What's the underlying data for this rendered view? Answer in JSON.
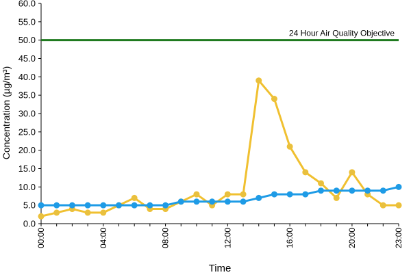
{
  "chart_data": {
    "type": "line",
    "title": "",
    "xlabel": "Time",
    "ylabel": "Concentration (µg/m³)",
    "ylim": [
      0,
      60
    ],
    "yticks": [
      "0.0",
      "5.0",
      "10.0",
      "15.0",
      "20.0",
      "25.0",
      "30.0",
      "35.0",
      "40.0",
      "45.0",
      "50.0",
      "55.0",
      "60.0"
    ],
    "x": [
      "00:00",
      "01:00",
      "02:00",
      "03:00",
      "04:00",
      "05:00",
      "06:00",
      "07:00",
      "08:00",
      "09:00",
      "10:00",
      "11:00",
      "12:00",
      "13:00",
      "14:00",
      "15:00",
      "16:00",
      "17:00",
      "18:00",
      "19:00",
      "20:00",
      "21:00",
      "22:00",
      "23:00"
    ],
    "xtick_labels": [
      "00:00",
      "04:00",
      "08:00",
      "12:00",
      "16:00",
      "20:00",
      "23:00"
    ],
    "grid": false,
    "series": [
      {
        "color": "#f0c030",
        "marker_color": "#e8c040",
        "values": [
          2,
          3,
          4,
          3,
          3,
          5,
          7,
          4,
          4,
          6,
          8,
          5,
          8,
          8,
          39,
          34,
          21,
          14,
          11,
          7,
          14,
          8,
          5,
          5
        ]
      },
      {
        "color": "#1e9be6",
        "values": [
          5,
          5,
          5,
          5,
          5,
          5,
          5,
          5,
          5,
          6,
          6,
          6,
          6,
          6,
          7,
          8,
          8,
          8,
          9,
          9,
          9,
          9,
          9,
          10
        ]
      }
    ],
    "reference_line": {
      "value": 50,
      "label": "24 Hour Air Quality Objective",
      "color": "#1f7a1f"
    }
  }
}
